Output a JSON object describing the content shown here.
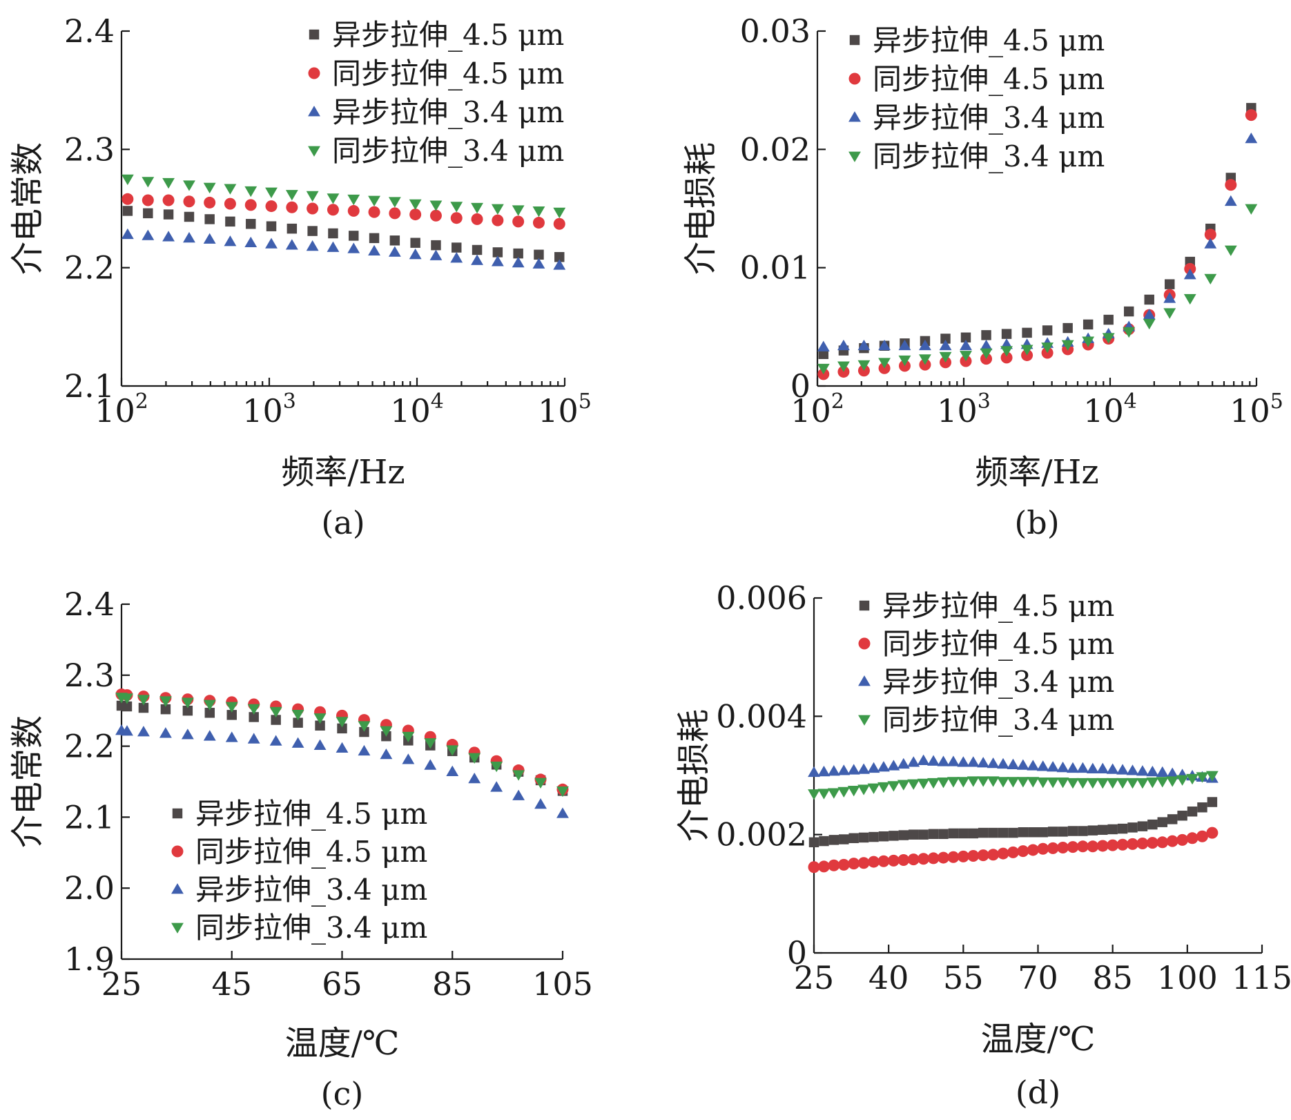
{
  "colors": {
    "axis": "#1a1a1a",
    "square": "#4d4848",
    "circle": "#e0393e",
    "triangle_up": "#3f5fae",
    "triangle_down": "#3d9a4a"
  },
  "legend_labels": [
    "异步拉伸_4.5 μm",
    "同步拉伸_4.5 μm",
    "异步拉伸_3.4 μm",
    "同步拉伸_3.4 μm"
  ],
  "chart_data": [
    {
      "id": "a",
      "caption": "(a)",
      "type": "scatter",
      "xlabel": "频率/Hz",
      "ylabel": "介电常数",
      "xscale": "log",
      "xlim": [
        100,
        100000
      ],
      "ylim": [
        2.1,
        2.4
      ],
      "xticks": [
        100,
        1000,
        10000,
        100000
      ],
      "xtick_bases": [
        "10",
        "10",
        "10",
        "10"
      ],
      "xtick_exps": [
        "2",
        "3",
        "4",
        "5"
      ],
      "yticks": [
        2.1,
        2.2,
        2.3,
        2.4
      ],
      "ytick_labels": [
        "2.1",
        "2.2",
        "2.3",
        "2.4"
      ],
      "legend_position": "top-right",
      "x": [
        110,
        151,
        208,
        287,
        395,
        544,
        750,
        1033,
        1424,
        1962,
        2704,
        3726,
        5135,
        7076,
        9751,
        13437,
        18516,
        25516,
        35162,
        48455,
        66773,
        92014
      ],
      "series": [
        {
          "name": "异步拉伸_4.5 μm",
          "marker": "square",
          "values": [
            2.248,
            2.246,
            2.245,
            2.243,
            2.241,
            2.239,
            2.237,
            2.235,
            2.233,
            2.231,
            2.229,
            2.227,
            2.225,
            2.223,
            2.221,
            2.219,
            2.217,
            2.215,
            2.213,
            2.212,
            2.211,
            2.209
          ]
        },
        {
          "name": "同步拉伸_4.5 μm",
          "marker": "circle",
          "values": [
            2.258,
            2.257,
            2.257,
            2.256,
            2.255,
            2.254,
            2.253,
            2.252,
            2.251,
            2.25,
            2.249,
            2.248,
            2.247,
            2.246,
            2.245,
            2.244,
            2.242,
            2.241,
            2.24,
            2.239,
            2.238,
            2.237
          ]
        },
        {
          "name": "异步拉伸_3.4 μm",
          "marker": "triangle_up",
          "values": [
            2.228,
            2.227,
            2.226,
            2.225,
            2.224,
            2.222,
            2.221,
            2.22,
            2.219,
            2.218,
            2.217,
            2.216,
            2.214,
            2.213,
            2.211,
            2.21,
            2.208,
            2.206,
            2.205,
            2.204,
            2.203,
            2.202
          ]
        },
        {
          "name": "同步拉伸_3.4 μm",
          "marker": "triangle_down",
          "values": [
            2.275,
            2.273,
            2.272,
            2.27,
            2.268,
            2.267,
            2.265,
            2.264,
            2.262,
            2.261,
            2.259,
            2.258,
            2.257,
            2.256,
            2.254,
            2.253,
            2.252,
            2.251,
            2.25,
            2.249,
            2.248,
            2.247
          ]
        }
      ]
    },
    {
      "id": "b",
      "caption": "(b)",
      "type": "scatter",
      "xlabel": "频率/Hz",
      "ylabel": "介电损耗",
      "xscale": "log",
      "xlim": [
        100,
        100000
      ],
      "ylim": [
        0,
        0.03
      ],
      "xticks": [
        100,
        1000,
        10000,
        100000
      ],
      "xtick_bases": [
        "10",
        "10",
        "10",
        "10"
      ],
      "xtick_exps": [
        "2",
        "3",
        "4",
        "5"
      ],
      "yticks": [
        0,
        0.01,
        0.02,
        0.03
      ],
      "ytick_labels": [
        "0",
        "0.01",
        "0.02",
        "0.03"
      ],
      "legend_position": "top-left",
      "x": [
        110,
        151,
        208,
        287,
        395,
        544,
        750,
        1033,
        1424,
        1962,
        2704,
        3726,
        5135,
        7076,
        9751,
        13437,
        18516,
        25516,
        35162,
        48455,
        66773,
        92014
      ],
      "series": [
        {
          "name": "异步拉伸_4.5 μm",
          "marker": "square",
          "values": [
            0.0027,
            0.003,
            0.0032,
            0.0034,
            0.0036,
            0.0038,
            0.004,
            0.0041,
            0.0043,
            0.0044,
            0.0045,
            0.0047,
            0.0049,
            0.0052,
            0.0056,
            0.0063,
            0.0073,
            0.0086,
            0.0105,
            0.0133,
            0.0176,
            0.0235
          ]
        },
        {
          "name": "同步拉伸_4.5 μm",
          "marker": "circle",
          "values": [
            0.001,
            0.0012,
            0.0013,
            0.0015,
            0.0017,
            0.0018,
            0.002,
            0.0021,
            0.0023,
            0.0024,
            0.0026,
            0.0028,
            0.0031,
            0.0035,
            0.004,
            0.0048,
            0.006,
            0.0077,
            0.0099,
            0.0128,
            0.017,
            0.0229
          ]
        },
        {
          "name": "异步拉伸_3.4 μm",
          "marker": "triangle_up",
          "values": [
            0.0033,
            0.0034,
            0.0034,
            0.0034,
            0.0034,
            0.0034,
            0.0034,
            0.0034,
            0.0034,
            0.0035,
            0.0035,
            0.0036,
            0.0037,
            0.004,
            0.0044,
            0.005,
            0.006,
            0.0074,
            0.0094,
            0.012,
            0.0156,
            0.0209
          ]
        },
        {
          "name": "同步拉伸_3.4 μm",
          "marker": "triangle_down",
          "values": [
            0.0015,
            0.0017,
            0.0018,
            0.002,
            0.0022,
            0.0023,
            0.0025,
            0.0026,
            0.0028,
            0.003,
            0.0031,
            0.0033,
            0.0035,
            0.0038,
            0.0041,
            0.0046,
            0.0053,
            0.0062,
            0.0074,
            0.0091,
            0.0115,
            0.015
          ]
        }
      ]
    },
    {
      "id": "c",
      "caption": "(c)",
      "type": "scatter",
      "xlabel": "温度/℃",
      "ylabel": "介电常数",
      "xscale": "linear",
      "xlim": [
        25,
        105
      ],
      "ylim": [
        1.9,
        2.4
      ],
      "xticks": [
        25,
        45,
        65,
        85,
        105
      ],
      "xtick_labels": [
        "25",
        "45",
        "65",
        "85",
        "105"
      ],
      "yticks": [
        1.9,
        2.0,
        2.1,
        2.2,
        2.3,
        2.4
      ],
      "ytick_labels": [
        "1.9",
        "2.0",
        "2.1",
        "2.2",
        "2.3",
        "2.4"
      ],
      "legend_position": "bottom-left",
      "x": [
        25,
        26,
        29,
        33,
        37,
        41,
        45,
        49,
        53,
        57,
        61,
        65,
        69,
        73,
        77,
        81,
        85,
        89,
        93,
        97,
        101,
        105
      ],
      "series": [
        {
          "name": "异步拉伸_4.5 μm",
          "marker": "square",
          "values": [
            2.257,
            2.256,
            2.254,
            2.252,
            2.25,
            2.247,
            2.244,
            2.241,
            2.237,
            2.233,
            2.229,
            2.225,
            2.22,
            2.214,
            2.208,
            2.201,
            2.193,
            2.184,
            2.174,
            2.164,
            2.152,
            2.137
          ]
        },
        {
          "name": "同步拉伸_4.5 μm",
          "marker": "circle",
          "values": [
            2.273,
            2.272,
            2.27,
            2.268,
            2.266,
            2.264,
            2.262,
            2.259,
            2.256,
            2.252,
            2.248,
            2.243,
            2.237,
            2.23,
            2.222,
            2.213,
            2.202,
            2.191,
            2.179,
            2.166,
            2.153,
            2.139
          ]
        },
        {
          "name": "异步拉伸_3.4 μm",
          "marker": "triangle_up",
          "values": [
            2.222,
            2.221,
            2.22,
            2.218,
            2.216,
            2.214,
            2.212,
            2.21,
            2.207,
            2.204,
            2.201,
            2.197,
            2.193,
            2.188,
            2.181,
            2.173,
            2.164,
            2.154,
            2.142,
            2.13,
            2.118,
            2.105
          ]
        },
        {
          "name": "同步拉伸_3.4 μm",
          "marker": "triangle_down",
          "values": [
            2.269,
            2.268,
            2.266,
            2.264,
            2.262,
            2.259,
            2.256,
            2.253,
            2.249,
            2.245,
            2.24,
            2.235,
            2.229,
            2.222,
            2.214,
            2.205,
            2.195,
            2.184,
            2.172,
            2.16,
            2.149,
            2.137
          ]
        }
      ]
    },
    {
      "id": "d",
      "caption": "(d)",
      "type": "scatter",
      "xlabel": "温度/℃",
      "ylabel": "介电损耗",
      "xscale": "linear",
      "xlim": [
        25,
        115
      ],
      "ylim": [
        0,
        0.006
      ],
      "xticks": [
        25,
        40,
        55,
        70,
        85,
        100,
        115
      ],
      "xtick_labels": [
        "25",
        "40",
        "55",
        "70",
        "85",
        "100",
        "115"
      ],
      "yticks": [
        0,
        0.002,
        0.004,
        0.006
      ],
      "ytick_labels": [
        "0",
        "0.002",
        "0.004",
        "0.006"
      ],
      "legend_position": "top-left",
      "x": [
        25,
        27,
        29,
        31,
        33,
        35,
        37,
        39,
        41,
        43,
        45,
        47,
        49,
        51,
        53,
        55,
        57,
        59,
        61,
        63,
        65,
        67,
        69,
        71,
        73,
        75,
        77,
        79,
        81,
        83,
        85,
        87,
        89,
        91,
        93,
        95,
        97,
        99,
        101,
        103,
        105
      ],
      "series": [
        {
          "name": "异步拉伸_4.5 μm",
          "marker": "square",
          "values": [
            0.00187,
            0.00189,
            0.00191,
            0.00192,
            0.00194,
            0.00195,
            0.00196,
            0.00197,
            0.00198,
            0.00199,
            0.002,
            0.002,
            0.00201,
            0.00201,
            0.00202,
            0.00202,
            0.00202,
            0.00203,
            0.00203,
            0.00203,
            0.00203,
            0.00204,
            0.00204,
            0.00204,
            0.00205,
            0.00205,
            0.00206,
            0.00206,
            0.00207,
            0.00208,
            0.00209,
            0.0021,
            0.00212,
            0.00214,
            0.00217,
            0.00221,
            0.00226,
            0.00232,
            0.00239,
            0.00246,
            0.00255
          ]
        },
        {
          "name": "同步拉伸_4.5 μm",
          "marker": "circle",
          "values": [
            0.00145,
            0.00146,
            0.00148,
            0.00149,
            0.00151,
            0.00152,
            0.00154,
            0.00155,
            0.00156,
            0.00157,
            0.00158,
            0.00159,
            0.0016,
            0.00161,
            0.00162,
            0.00163,
            0.00164,
            0.00165,
            0.00166,
            0.00168,
            0.0017,
            0.00172,
            0.00174,
            0.00176,
            0.00177,
            0.00178,
            0.00179,
            0.0018,
            0.0018,
            0.00181,
            0.00182,
            0.00183,
            0.00184,
            0.00185,
            0.00186,
            0.00187,
            0.00189,
            0.00191,
            0.00194,
            0.00197,
            0.00203
          ]
        },
        {
          "name": "异步拉伸_3.4 μm",
          "marker": "triangle_up",
          "values": [
            0.00305,
            0.00306,
            0.00307,
            0.00308,
            0.00309,
            0.0031,
            0.00312,
            0.00314,
            0.00316,
            0.00319,
            0.00322,
            0.00325,
            0.00324,
            0.00323,
            0.00323,
            0.00322,
            0.00322,
            0.00321,
            0.0032,
            0.00319,
            0.00318,
            0.00317,
            0.00316,
            0.00315,
            0.00314,
            0.00313,
            0.00312,
            0.00312,
            0.00311,
            0.00311,
            0.0031,
            0.00309,
            0.00308,
            0.00307,
            0.00306,
            0.00305,
            0.00303,
            0.00301,
            0.00299,
            0.00297,
            0.00295
          ]
        },
        {
          "name": "同步拉伸_3.4 μm",
          "marker": "triangle_down",
          "values": [
            0.00269,
            0.0027,
            0.00271,
            0.00273,
            0.00275,
            0.00277,
            0.00279,
            0.00281,
            0.00283,
            0.00285,
            0.00286,
            0.00287,
            0.00288,
            0.00289,
            0.0029,
            0.0029,
            0.00291,
            0.00291,
            0.00291,
            0.0029,
            0.0029,
            0.0029,
            0.0029,
            0.00289,
            0.00289,
            0.00289,
            0.00288,
            0.00288,
            0.00288,
            0.00288,
            0.00288,
            0.00288,
            0.00288,
            0.00288,
            0.00289,
            0.0029,
            0.00291,
            0.00293,
            0.00295,
            0.00298,
            0.003
          ]
        }
      ]
    }
  ]
}
